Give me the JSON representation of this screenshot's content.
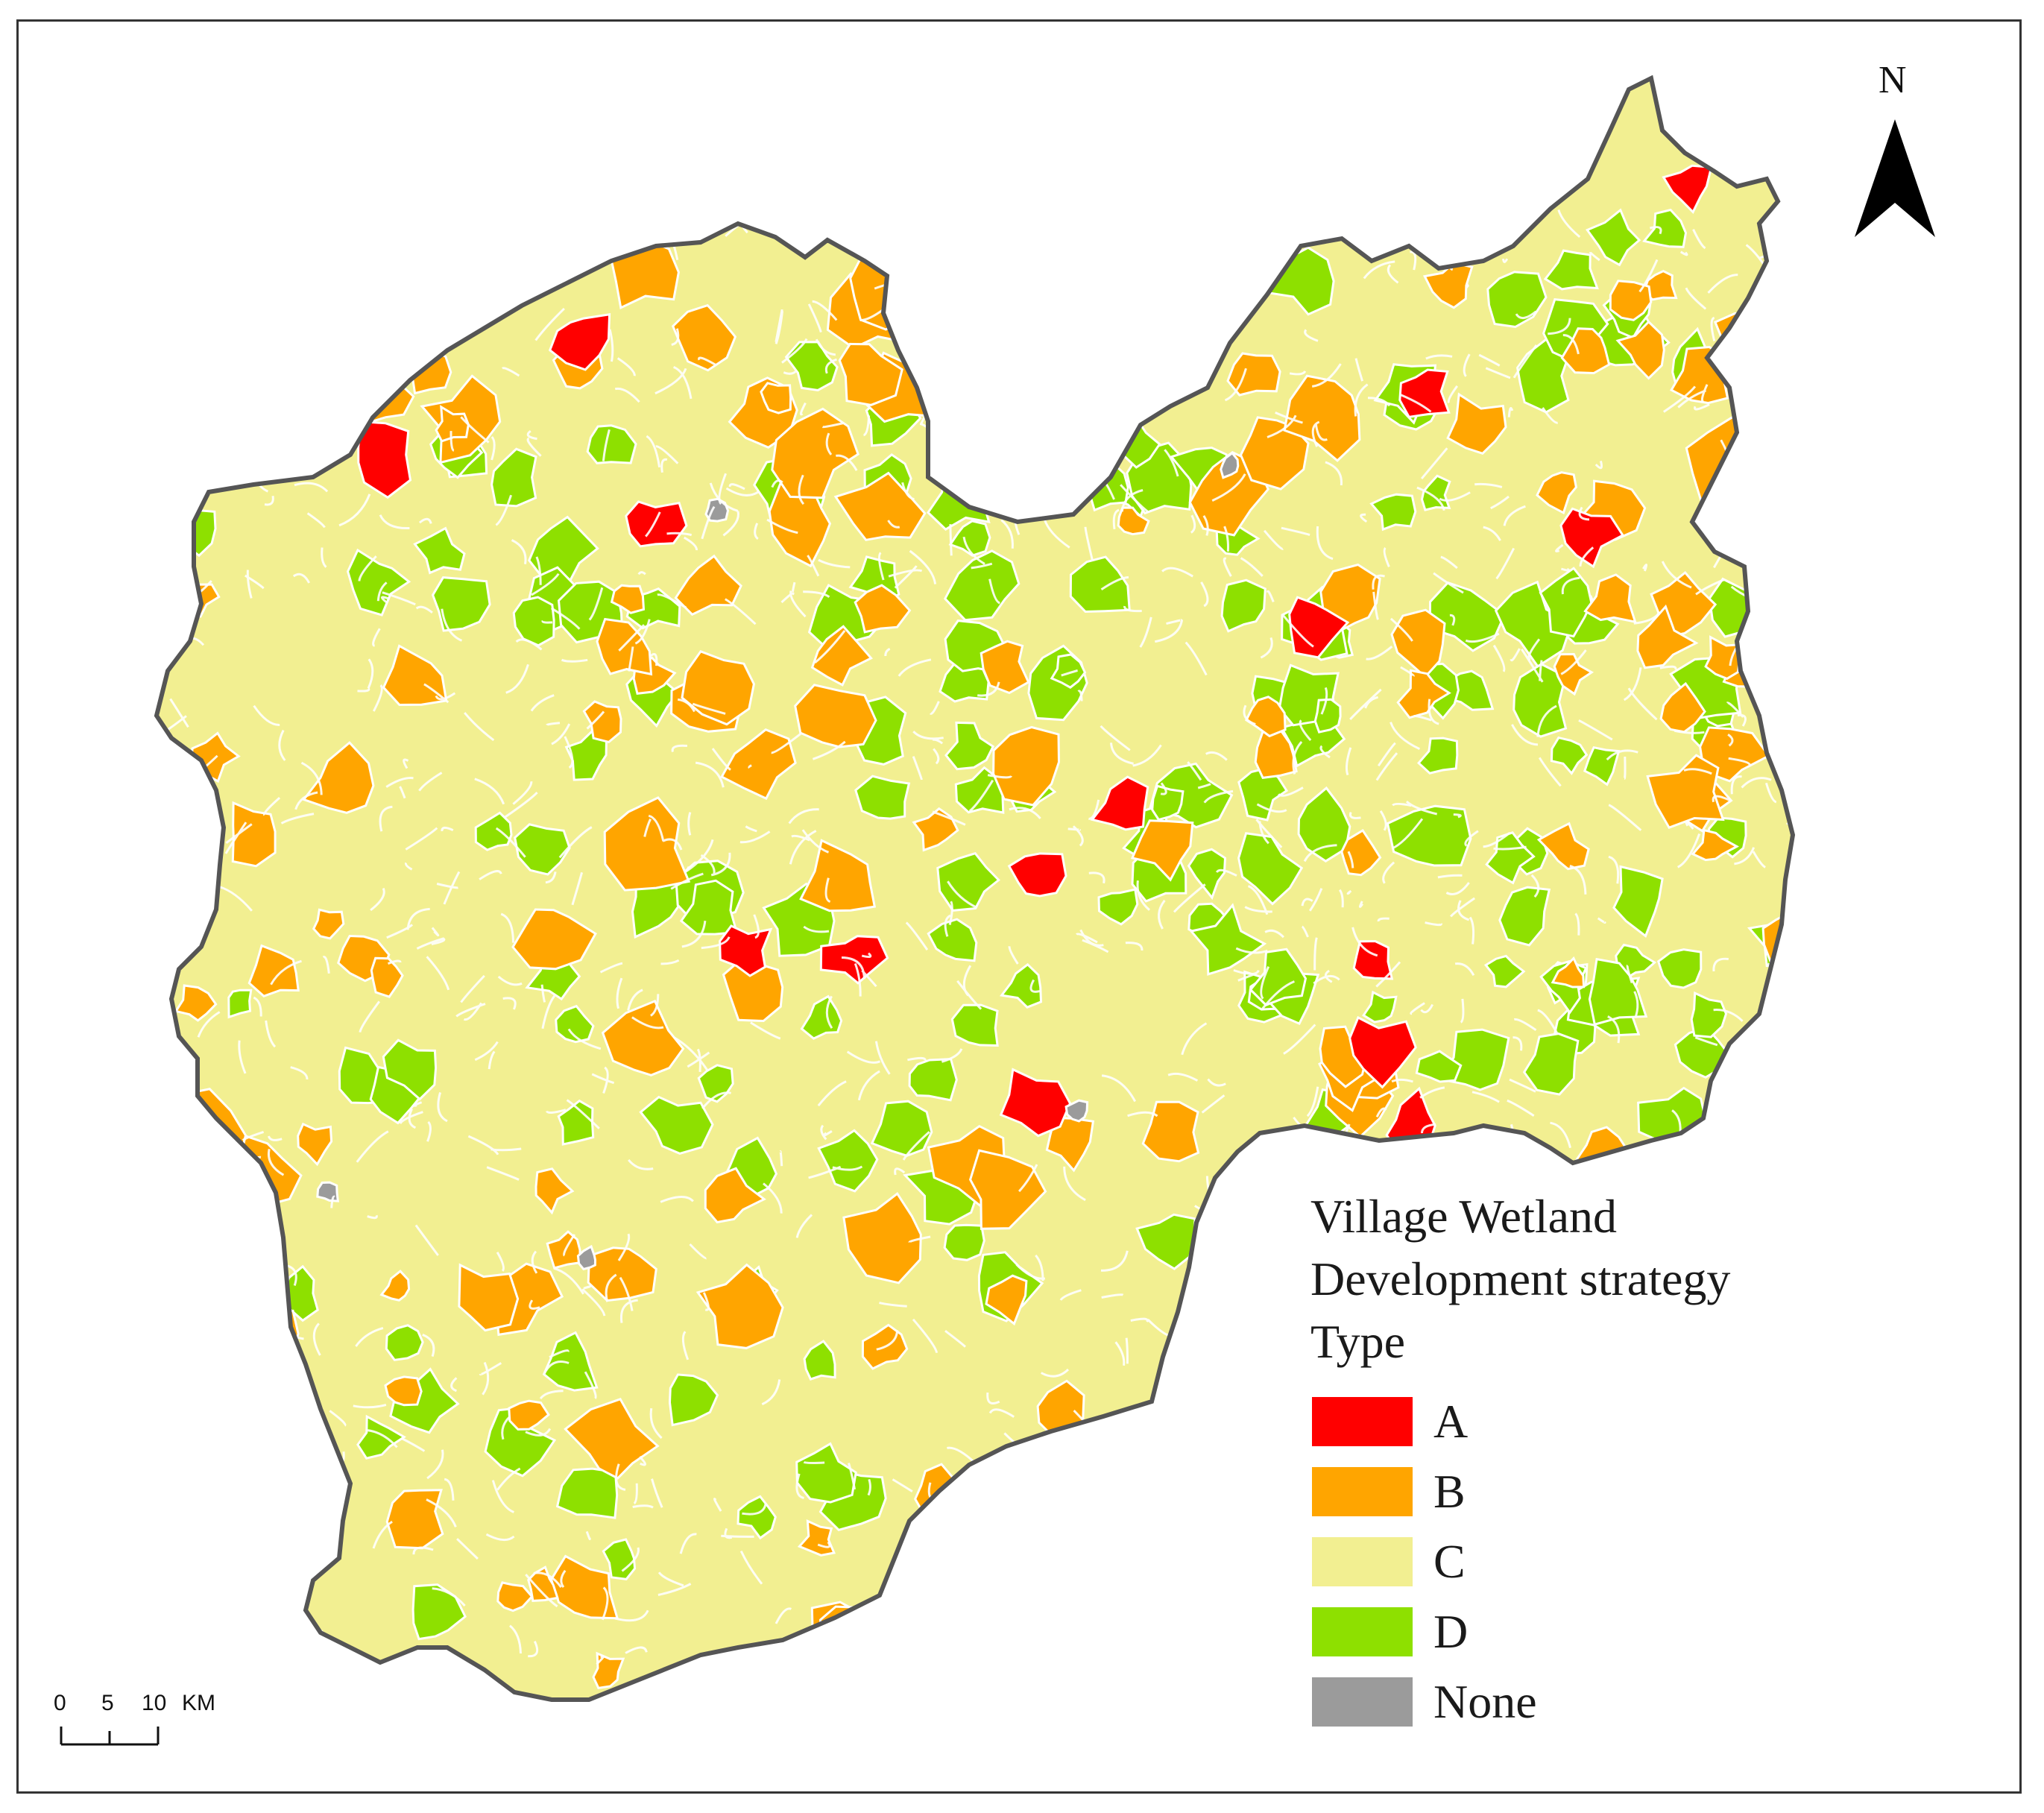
{
  "map": {
    "legend": {
      "title_line1": "Village Wetland",
      "title_line2": "Development strategy",
      "title_line3": "Type",
      "items": [
        {
          "label": "A",
          "color": "#ff0000"
        },
        {
          "label": "B",
          "color": "#ffa500"
        },
        {
          "label": "C",
          "color": "#f2ef91"
        },
        {
          "label": "D",
          "color": "#8ee000"
        },
        {
          "label": "None",
          "color": "#9b9b9b"
        }
      ]
    },
    "north_arrow": {
      "label": "N"
    },
    "scale_bar": {
      "tick_0": "0",
      "tick_5": "5",
      "tick_10": "10",
      "unit": "KM"
    },
    "colors": {
      "boundary": "#555555",
      "village_border": "#ffffff"
    }
  }
}
